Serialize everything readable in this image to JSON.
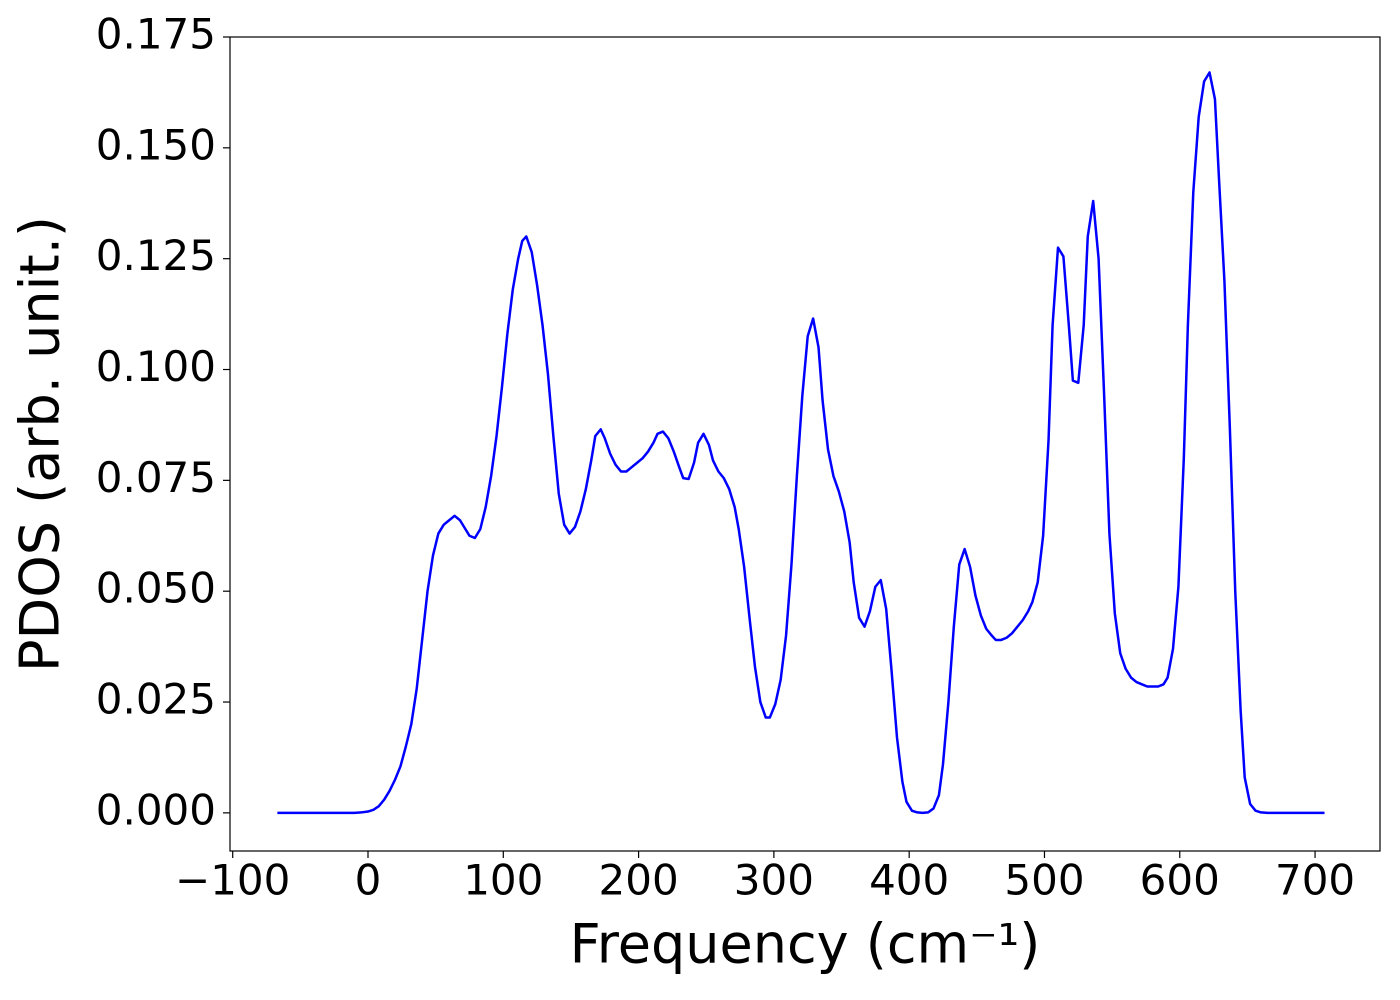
{
  "chart_data": {
    "type": "line",
    "xlabel": "Frequency (cm⁻¹)",
    "ylabel": "PDOS (arb. unit.)",
    "x": [
      -67,
      -60,
      -50,
      -40,
      -30,
      -20,
      -10,
      -5,
      0,
      4,
      8,
      12,
      16,
      20,
      24,
      28,
      32,
      36,
      40,
      44,
      48,
      52,
      56,
      60,
      64,
      68,
      72,
      75,
      79,
      83,
      87,
      91,
      95,
      99,
      103,
      107,
      111,
      114,
      117,
      121,
      125,
      129,
      133,
      137,
      141,
      145,
      149,
      153,
      157,
      161,
      165,
      168,
      172,
      175,
      179,
      183,
      187,
      191,
      195,
      199,
      203,
      207,
      211,
      214,
      218,
      222,
      226,
      230,
      233,
      237,
      241,
      244,
      248,
      252,
      255,
      259,
      263,
      267,
      271,
      274,
      278,
      282,
      286,
      290,
      294,
      297,
      301,
      305,
      309,
      313,
      317,
      321,
      325,
      329,
      333,
      336,
      340,
      344,
      348,
      352,
      356,
      359,
      363,
      367,
      371,
      375,
      379,
      383,
      387,
      391,
      395,
      398,
      402,
      406,
      410,
      414,
      418,
      422,
      425,
      429,
      433,
      437,
      441,
      445,
      449,
      453,
      457,
      461,
      464,
      468,
      472,
      476,
      480,
      484,
      488,
      491,
      495,
      499,
      503,
      506,
      510,
      514,
      518,
      521,
      525,
      529,
      532,
      536,
      540,
      544,
      548,
      552,
      556,
      560,
      564,
      568,
      572,
      576,
      580,
      584,
      588,
      591,
      595,
      599,
      603,
      606,
      610,
      614,
      618,
      622,
      626,
      629,
      633,
      637,
      641,
      645,
      648,
      652,
      656,
      660,
      665,
      680,
      707
    ],
    "values": [
      0,
      0,
      0,
      0,
      0,
      0,
      0,
      0.0001,
      0.0003,
      0.0007,
      0.0015,
      0.003,
      0.005,
      0.0075,
      0.0105,
      0.015,
      0.02,
      0.028,
      0.039,
      0.05,
      0.058,
      0.063,
      0.065,
      0.066,
      0.067,
      0.066,
      0.064,
      0.0625,
      0.062,
      0.064,
      0.069,
      0.076,
      0.085,
      0.096,
      0.108,
      0.118,
      0.125,
      0.129,
      0.13,
      0.1265,
      0.119,
      0.11,
      0.099,
      0.085,
      0.072,
      0.065,
      0.063,
      0.0645,
      0.068,
      0.073,
      0.0795,
      0.085,
      0.0865,
      0.0845,
      0.081,
      0.0785,
      0.077,
      0.077,
      0.078,
      0.079,
      0.08,
      0.0815,
      0.0835,
      0.0855,
      0.086,
      0.0845,
      0.0815,
      0.078,
      0.0755,
      0.0753,
      0.079,
      0.0835,
      0.0855,
      0.083,
      0.0795,
      0.077,
      0.0755,
      0.073,
      0.069,
      0.064,
      0.0555,
      0.044,
      0.033,
      0.025,
      0.0215,
      0.0215,
      0.0245,
      0.03,
      0.04,
      0.056,
      0.076,
      0.094,
      0.1075,
      0.1115,
      0.105,
      0.093,
      0.082,
      0.076,
      0.0725,
      0.068,
      0.061,
      0.052,
      0.044,
      0.042,
      0.0455,
      0.051,
      0.0525,
      0.046,
      0.032,
      0.017,
      0.007,
      0.0025,
      0.0005,
      0.0001,
      0,
      0.0001,
      0.001,
      0.004,
      0.011,
      0.025,
      0.042,
      0.056,
      0.0595,
      0.0555,
      0.049,
      0.0445,
      0.0415,
      0.04,
      0.039,
      0.039,
      0.0395,
      0.0405,
      0.042,
      0.0435,
      0.0455,
      0.0475,
      0.052,
      0.0625,
      0.084,
      0.11,
      0.1275,
      0.1255,
      0.11,
      0.0975,
      0.097,
      0.11,
      0.13,
      0.138,
      0.125,
      0.095,
      0.063,
      0.045,
      0.036,
      0.0325,
      0.0305,
      0.0295,
      0.029,
      0.0285,
      0.0285,
      0.0285,
      0.029,
      0.0305,
      0.037,
      0.051,
      0.08,
      0.11,
      0.14,
      0.157,
      0.165,
      0.167,
      0.161,
      0.143,
      0.12,
      0.087,
      0.05,
      0.023,
      0.008,
      0.002,
      0.0005,
      0.0001,
      0,
      0,
      0
    ],
    "color": "#0000ff",
    "xlim": [
      -102,
      748
    ],
    "ylim": [
      -0.0086,
      0.175
    ],
    "xticks": [
      {
        "value": -100,
        "label": "−100"
      },
      0,
      100,
      200,
      300,
      400,
      500,
      600,
      700
    ],
    "yticks": [
      {
        "value": 0,
        "label": "0.000"
      },
      {
        "value": 0.025,
        "label": "0.025"
      },
      {
        "value": 0.05,
        "label": "0.050"
      },
      {
        "value": 0.075,
        "label": "0.075"
      },
      {
        "value": 0.1,
        "label": "0.100"
      },
      {
        "value": 0.125,
        "label": "0.125"
      },
      {
        "value": 0.15,
        "label": "0.150"
      },
      {
        "value": 0.175,
        "label": "0.175"
      }
    ]
  }
}
